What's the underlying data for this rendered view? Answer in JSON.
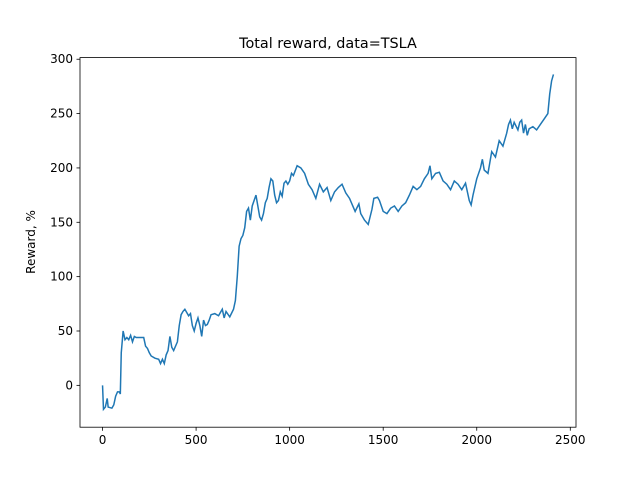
{
  "chart_data": {
    "type": "line",
    "title": "Total reward, data=TSLA",
    "ylabel": "Reward, %",
    "color": "#1f77b4",
    "x": [
      0,
      5,
      15,
      25,
      30,
      50,
      60,
      70,
      80,
      90,
      95,
      100,
      105,
      110,
      120,
      130,
      140,
      150,
      160,
      170,
      180,
      200,
      220,
      230,
      240,
      250,
      260,
      280,
      300,
      310,
      320,
      330,
      340,
      350,
      360,
      370,
      380,
      400,
      410,
      420,
      430,
      440,
      450,
      460,
      470,
      480,
      490,
      500,
      510,
      520,
      530,
      540,
      550,
      560,
      570,
      580,
      600,
      620,
      640,
      650,
      660,
      680,
      700,
      710,
      720,
      730,
      740,
      750,
      760,
      770,
      780,
      790,
      800,
      810,
      820,
      830,
      840,
      850,
      860,
      870,
      880,
      890,
      900,
      910,
      920,
      930,
      940,
      950,
      960,
      970,
      980,
      990,
      1000,
      1010,
      1020,
      1040,
      1060,
      1080,
      1100,
      1120,
      1140,
      1160,
      1180,
      1200,
      1220,
      1240,
      1260,
      1280,
      1300,
      1320,
      1340,
      1350,
      1370,
      1380,
      1400,
      1420,
      1440,
      1450,
      1470,
      1480,
      1500,
      1520,
      1540,
      1560,
      1580,
      1600,
      1620,
      1640,
      1660,
      1680,
      1700,
      1720,
      1740,
      1750,
      1760,
      1780,
      1800,
      1820,
      1840,
      1860,
      1880,
      1900,
      1920,
      1940,
      1960,
      1970,
      1980,
      2000,
      2020,
      2030,
      2040,
      2060,
      2080,
      2100,
      2120,
      2140,
      2160,
      2170,
      2180,
      2190,
      2200,
      2220,
      2230,
      2240,
      2250,
      2260,
      2270,
      2280,
      2300,
      2320,
      2340,
      2360,
      2380,
      2390,
      2400,
      2410
    ],
    "values": [
      0,
      -22,
      -20,
      -12,
      -20,
      -21,
      -18,
      -10,
      -6,
      -6,
      -8,
      30,
      40,
      50,
      42,
      44,
      42,
      46,
      40,
      45,
      44,
      44,
      44,
      36,
      34,
      30,
      27,
      25,
      24,
      20,
      24,
      20,
      28,
      32,
      45,
      35,
      32,
      40,
      55,
      65,
      68,
      70,
      67,
      64,
      66,
      55,
      50,
      57,
      62,
      55,
      45,
      60,
      55,
      56,
      60,
      65,
      66,
      64,
      70,
      62,
      68,
      63,
      70,
      78,
      100,
      128,
      135,
      138,
      145,
      160,
      163,
      152,
      165,
      170,
      175,
      165,
      155,
      152,
      158,
      168,
      172,
      182,
      190,
      188,
      175,
      168,
      170,
      178,
      174,
      186,
      188,
      185,
      188,
      195,
      193,
      202,
      200,
      195,
      185,
      180,
      172,
      185,
      178,
      182,
      170,
      178,
      182,
      185,
      177,
      172,
      164,
      160,
      167,
      158,
      152,
      148,
      162,
      172,
      173,
      170,
      160,
      158,
      163,
      165,
      160,
      165,
      168,
      175,
      183,
      180,
      183,
      190,
      195,
      202,
      190,
      195,
      196,
      188,
      185,
      180,
      188,
      185,
      180,
      186,
      170,
      166,
      175,
      190,
      200,
      208,
      198,
      195,
      215,
      210,
      225,
      220,
      232,
      240,
      244,
      236,
      242,
      235,
      242,
      244,
      232,
      240,
      230,
      236,
      238,
      235,
      240,
      245,
      250,
      268,
      280,
      286
    ],
    "xlim": [
      -120.5,
      2530.5
    ],
    "ylim": [
      -38.5,
      301.5
    ],
    "xticks": [
      0,
      500,
      1000,
      1500,
      2000,
      2500
    ],
    "yticks": [
      0,
      50,
      100,
      150,
      200,
      250,
      300
    ]
  }
}
